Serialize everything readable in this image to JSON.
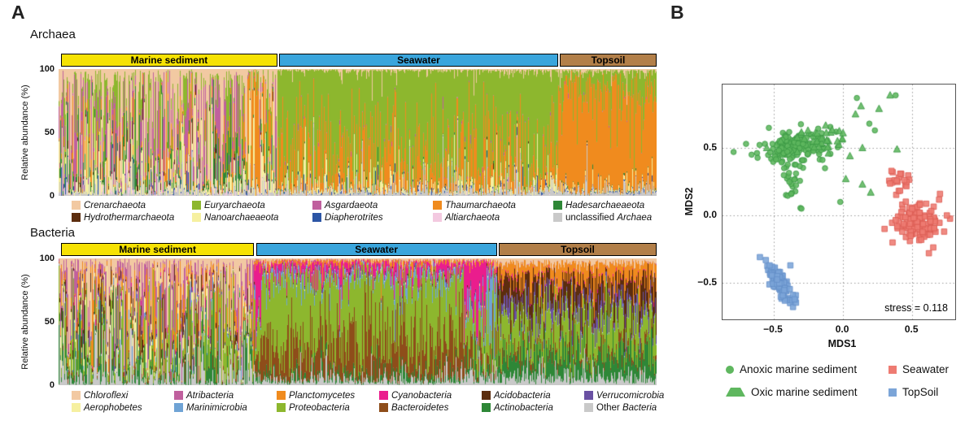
{
  "panel_a": {
    "label": "A",
    "archaea_title": "Archaea",
    "bacteria_title": "Bacteria",
    "ylabel": "Relative abundance (%)",
    "yticks": [
      100,
      50,
      0
    ]
  },
  "panel_b": {
    "label": "B",
    "xlabel": "MDS1",
    "ylabel": "MDS2",
    "stress": "stress = 0.118",
    "legend_order": [
      0,
      2,
      1,
      3
    ]
  },
  "chart_data": [
    {
      "id": "archaea",
      "type": "bar",
      "subtype": "stacked-relative-abundance",
      "title": "Archaea",
      "ylabel": "Relative abundance (%)",
      "ylim": [
        0,
        100
      ],
      "yticks": [
        100,
        50,
        0
      ],
      "seed": 11,
      "taxa": [
        {
          "name": "Crenarchaeota",
          "color": "#F2C9A2"
        },
        {
          "name": "Euryarchaeota",
          "color": "#8DB72E"
        },
        {
          "name": "Asgardaeota",
          "color": "#C0609E"
        },
        {
          "name": "Thaumarchaeota",
          "color": "#F08B1E"
        },
        {
          "name": "Hadesarchaeaeota",
          "color": "#2E8737"
        },
        {
          "name": "Hydrothermarchaeota",
          "color": "#5C2D0E"
        },
        {
          "name": "Nanoarchaeaeota",
          "color": "#F6F0A0"
        },
        {
          "name": "Diapherotrites",
          "color": "#2C55A5"
        },
        {
          "name": "Altiarchaeota",
          "color": "#F3C9E0"
        },
        {
          "name": "unclassified Archaea",
          "pre": "unclassified ",
          "it": "Archaea",
          "color": "#C9C9C9"
        }
      ],
      "groups": [
        {
          "name": "Marine sediment",
          "header_color": "#F6E203",
          "header_span": [
            0.004,
            0.366
          ],
          "sigma": 1.7,
          "mean_percent": [
            36,
            12,
            24,
            6,
            6,
            1,
            10,
            0.5,
            1,
            3.5
          ],
          "overrides": [
            {
              "from": 0.86,
              "to": 0.92,
              "mean_percent": [
                8,
                5,
                2,
                72,
                1,
                0.3,
                9,
                0.2,
                0.5,
                2
              ]
            },
            {
              "from": 0.92,
              "to": 0.985,
              "mean_percent": [
                18,
                12,
                6,
                24,
                4,
                1,
                28,
                0.5,
                1.5,
                5
              ]
            }
          ]
        },
        {
          "name": "Seawater",
          "header_color": "#3AA5DC",
          "header_span": [
            0.369,
            0.835
          ],
          "sigma": 1.15,
          "mean_percent": [
            1,
            75.5,
            0.3,
            17,
            0.2,
            0.1,
            2.5,
            0.4,
            0.2,
            2.8
          ],
          "overrides": []
        },
        {
          "name": "Topsoil",
          "header_color": "#B27F49",
          "header_span": [
            0.838,
            1.0
          ],
          "sigma": 0.9,
          "mean_percent": [
            1.5,
            13,
            0.2,
            80.5,
            0.3,
            0.1,
            1,
            0.4,
            0.2,
            2.8
          ],
          "overrides": []
        }
      ]
    },
    {
      "id": "bacteria",
      "type": "bar",
      "subtype": "stacked-relative-abundance",
      "title": "Bacteria",
      "ylabel": "Relative abundance (%)",
      "ylim": [
        0,
        100
      ],
      "yticks": [
        100,
        50,
        0
      ],
      "seed": 23,
      "taxa": [
        {
          "name": "Chloroflexi",
          "color": "#F2C9A2"
        },
        {
          "name": "Atribacteria",
          "color": "#C0609E"
        },
        {
          "name": "Planctomycetes",
          "color": "#F08B1E"
        },
        {
          "name": "Cyanobacteria",
          "color": "#EA1D8D"
        },
        {
          "name": "Acidobacteria",
          "color": "#5C2D0E"
        },
        {
          "name": "Verrucomicrobia",
          "color": "#6A51A3"
        },
        {
          "name": "Aerophobetes",
          "color": "#F6F0A0"
        },
        {
          "name": "Marinimicrobia",
          "color": "#6FA3D5"
        },
        {
          "name": "Proteobacteria",
          "color": "#8DB72E"
        },
        {
          "name": "Bacteroidetes",
          "color": "#8E4D1A"
        },
        {
          "name": "Actinobacteria",
          "color": "#2E8737"
        },
        {
          "name": "Other Bacteria",
          "pre": "Other ",
          "it": "Bacteria",
          "color": "#C9C9C9"
        }
      ],
      "groups": [
        {
          "name": "Marine sediment",
          "header_color": "#F6E203",
          "header_span": [
            0.004,
            0.327
          ],
          "sigma": 1.6,
          "mean_percent": [
            23,
            18,
            9,
            0.5,
            4,
            1,
            8,
            1.5,
            11,
            3,
            10,
            11
          ],
          "overrides": [
            {
              "from": 0.74,
              "to": 0.9,
              "mean_percent": [
                20,
                5,
                6,
                1,
                2,
                1,
                5,
                1,
                32,
                3,
                13,
                11
              ]
            }
          ]
        },
        {
          "name": "Seawater",
          "header_color": "#3AA5DC",
          "header_span": [
            0.33,
            0.733
          ],
          "sigma": 0.85,
          "mean_percent": [
            1,
            0.3,
            2,
            6,
            0.3,
            1,
            0.2,
            4,
            52,
            26,
            3,
            4.2
          ],
          "overrides": [
            {
              "from": 0.0,
              "to": 0.03,
              "mean_percent": [
                1,
                0.5,
                2,
                35,
                0.5,
                1,
                0.2,
                6,
                30,
                14,
                4,
                5.8
              ]
            },
            {
              "from": 0.86,
              "to": 0.955,
              "mean_percent": [
                1,
                0.5,
                2,
                38,
                0.5,
                2,
                0.2,
                8,
                26,
                12,
                4,
                5.8
              ]
            },
            {
              "from": 0.955,
              "to": 1.0,
              "mean_percent": [
                2,
                0.5,
                3,
                6,
                0.5,
                2,
                0.2,
                30,
                32,
                14,
                4,
                5.8
              ]
            }
          ]
        },
        {
          "name": "Topsoil",
          "header_color": "#B27F49",
          "header_span": [
            0.736,
            1.0
          ],
          "sigma": 0.7,
          "mean_percent": [
            4,
            0.2,
            13,
            1,
            19,
            8,
            0.2,
            0.6,
            27,
            4,
            17,
            6
          ],
          "overrides": []
        }
      ]
    },
    {
      "id": "mds",
      "type": "scatter",
      "xlabel": "MDS1",
      "ylabel": "MDS2",
      "xlim": [
        -0.87,
        0.81
      ],
      "ylim": [
        -0.77,
        0.97
      ],
      "grid": true,
      "stress": 0.118,
      "seed": 5,
      "xticks": [
        {
          "v": -0.5,
          "label": "−0.5"
        },
        {
          "v": 0.0,
          "label": "0.0"
        },
        {
          "v": 0.5,
          "label": "0.5"
        }
      ],
      "yticks": [
        {
          "v": 0.5,
          "label": "0.5"
        },
        {
          "v": 0.0,
          "label": "0.0"
        },
        {
          "v": -0.5,
          "label": "−0.5"
        }
      ],
      "series": [
        {
          "name": "Anoxic marine sediment",
          "marker": "circle",
          "color": "#5FB75F",
          "stroke": "#3C9A46",
          "clusters": [
            {
              "cx": -0.31,
              "cy": 0.53,
              "sx": 0.12,
              "sy": 0.06,
              "n": 120
            },
            {
              "cx": -0.44,
              "cy": 0.45,
              "sx": 0.07,
              "sy": 0.05,
              "n": 30
            },
            {
              "cx": -0.37,
              "cy": 0.25,
              "sx": 0.05,
              "sy": 0.09,
              "n": 28
            }
          ],
          "points": [
            [
              -0.79,
              0.47
            ],
            [
              -0.7,
              0.53
            ],
            [
              -0.66,
              0.45
            ],
            [
              0.1,
              0.87
            ],
            [
              0.38,
              0.89
            ],
            [
              0.19,
              0.68
            ],
            [
              -0.05,
              0.62
            ],
            [
              0.23,
              0.63
            ],
            [
              -0.13,
              0.35
            ],
            [
              -0.02,
              0.1
            ],
            [
              -0.3,
              0.05
            ]
          ]
        },
        {
          "name": "Oxic marine sediment",
          "marker": "triangle",
          "color": "#5FB75F",
          "stroke": "#3C9A46",
          "clusters": [
            {
              "cx": -0.15,
              "cy": 0.57,
              "sx": 0.08,
              "sy": 0.045,
              "n": 30
            }
          ],
          "points": [
            [
              0.34,
              0.89
            ],
            [
              0.26,
              0.79
            ],
            [
              0.13,
              0.81
            ],
            [
              0.09,
              0.75
            ],
            [
              0.0,
              0.61
            ],
            [
              -0.04,
              0.55
            ],
            [
              0.14,
              0.5
            ],
            [
              0.39,
              0.49
            ],
            [
              0.02,
              0.27
            ],
            [
              0.14,
              0.23
            ],
            [
              0.2,
              0.17
            ],
            [
              -0.33,
              0.47
            ],
            [
              -0.55,
              0.5
            ],
            [
              0.05,
              0.44
            ],
            [
              -0.45,
              0.55
            ]
          ]
        },
        {
          "name": "Seawater",
          "marker": "square",
          "color": "#EE7B72",
          "stroke": "#DD5F55",
          "clusters": [
            {
              "cx": 0.54,
              "cy": -0.05,
              "sx": 0.085,
              "sy": 0.075,
              "n": 120
            },
            {
              "cx": 0.41,
              "cy": 0.25,
              "sx": 0.05,
              "sy": 0.06,
              "n": 20
            }
          ],
          "points": [
            [
              0.75,
              0.0
            ],
            [
              0.73,
              -0.12
            ],
            [
              0.7,
              0.16
            ],
            [
              0.3,
              -0.1
            ],
            [
              0.62,
              -0.28
            ],
            [
              0.35,
              0.33
            ]
          ]
        },
        {
          "name": "TopSoil",
          "marker": "square",
          "color": "#7CA5D8",
          "stroke": "#6591C9",
          "clusters": [
            {
              "cx": -0.45,
              "cy": -0.515,
              "sx": 0.085,
              "sy": 0.026,
              "rot": -56,
              "n": 110
            }
          ],
          "points": [
            [
              -0.53,
              -0.37
            ],
            [
              -0.38,
              -0.37
            ]
          ]
        }
      ]
    }
  ]
}
